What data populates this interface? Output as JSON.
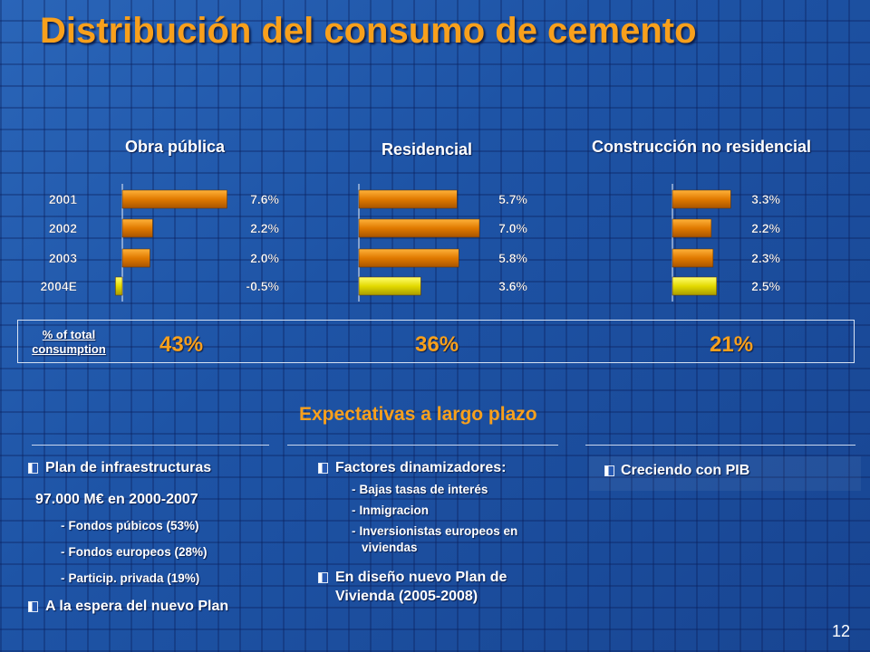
{
  "slide": {
    "title": "Distribución del consumo de cemento",
    "page_number": "12"
  },
  "charts": {
    "total_label": "% of total consumption",
    "obra": {
      "title": "Obra pública",
      "total": "43%"
    },
    "residencial": {
      "title": "Residencial",
      "total": "36%"
    },
    "noresidencial": {
      "title": "Construcción no residencial",
      "total": "21%"
    }
  },
  "chart_data": [
    {
      "type": "bar",
      "title": "Obra pública",
      "categories": [
        "2001",
        "2002",
        "2003",
        "2004E"
      ],
      "values": [
        7.6,
        2.2,
        2.0,
        -0.5
      ],
      "labels": [
        "7.6%",
        "2.2%",
        "2.0%",
        "-0.5%"
      ],
      "orientation": "horizontal"
    },
    {
      "type": "bar",
      "title": "Residencial",
      "categories": [
        "2001",
        "2002",
        "2003",
        "2004E"
      ],
      "values": [
        5.7,
        7.0,
        5.8,
        3.6
      ],
      "labels": [
        "5.7%",
        "7.0%",
        "5.8%",
        "3.6%"
      ],
      "orientation": "horizontal"
    },
    {
      "type": "bar",
      "title": "Construcción no residencial",
      "categories": [
        "2001",
        "2002",
        "2003",
        "2004E"
      ],
      "values": [
        3.3,
        2.2,
        2.3,
        2.5
      ],
      "labels": [
        "3.3%",
        "2.2%",
        "2.3%",
        "2.5%"
      ],
      "orientation": "horizontal"
    }
  ],
  "colors": {
    "bar_orange": "#e07a00",
    "bar_yellow": "#d8cc00",
    "accent": "#f8a01c"
  },
  "expectations": {
    "heading": "Expectativas a largo plazo",
    "col1": {
      "item1": "Plan de infraestructuras",
      "sub_amount": "97.000 M€ en 2000-2007",
      "sub1": "Fondos púbicos (53%)",
      "sub2": "Fondos europeos (28%)",
      "sub3": "Particip. privada (19%)",
      "item2": "A la espera del nuevo Plan"
    },
    "col2": {
      "item1": "Factores dinamizadores:",
      "sub1": "Bajas tasas de interés",
      "sub2": "Inmigracion",
      "sub3_line1": "Inversionistas europeos en",
      "sub3_line2": "viviendas",
      "item2_line1": "En diseño nuevo Plan de",
      "item2_line2": "Vivienda (2005-2008)"
    },
    "col3": {
      "item1": "Creciendo con PIB"
    }
  }
}
